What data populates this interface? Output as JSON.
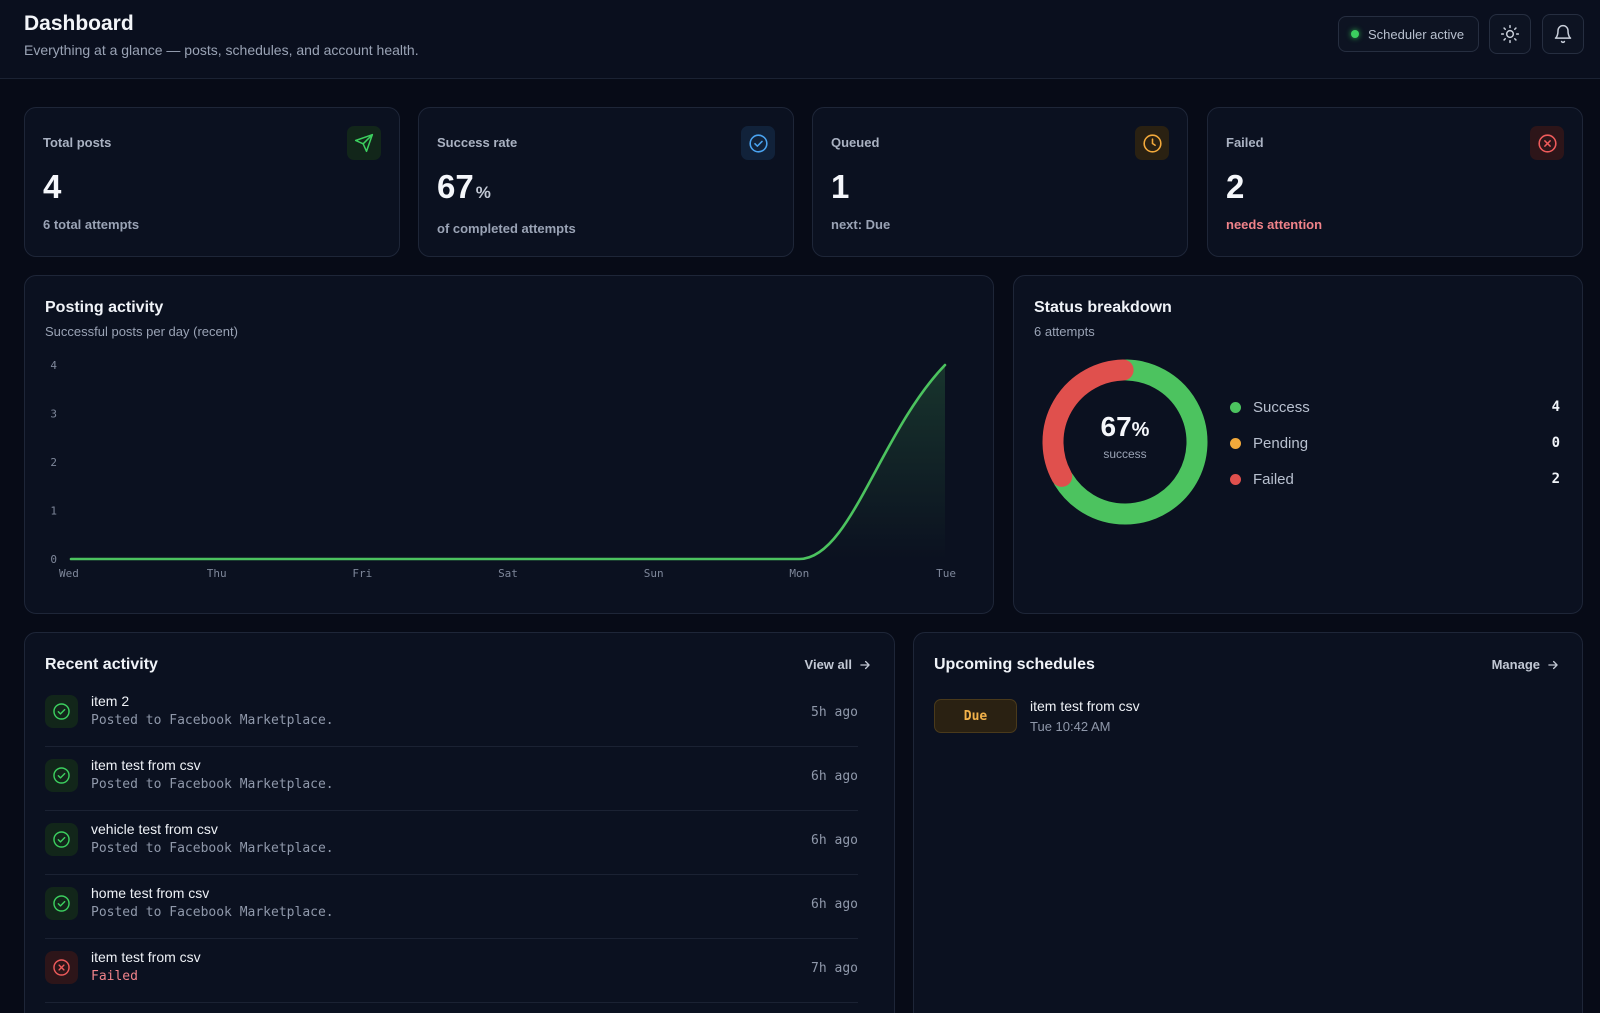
{
  "header": {
    "title": "Dashboard",
    "subtitle": "Everything at a glance — posts, schedules, and account health.",
    "scheduler_status": "Scheduler active",
    "status_color": "#3ccf5f",
    "theme_icon": "sun-icon",
    "notification_icon": "bell-icon"
  },
  "stats": {
    "total_posts": {
      "label": "Total posts",
      "value": "4",
      "sub": "6 total attempts",
      "icon": "send-icon",
      "color": "#3ccf5f"
    },
    "success_rate": {
      "label": "Success rate",
      "value": "67",
      "unit": "%",
      "sub": "of completed attempts",
      "icon": "check-circle-icon",
      "color": "#4aa3f0"
    },
    "queued": {
      "label": "Queued",
      "value": "1",
      "sub": "next: Due",
      "icon": "clock-icon",
      "color": "#f2a93b"
    },
    "failed": {
      "label": "Failed",
      "value": "2",
      "sub": "needs attention",
      "icon": "x-circle-icon",
      "color": "#ef5b5b"
    }
  },
  "posting_activity": {
    "title": "Posting activity",
    "subtitle": "Successful posts per day (recent)"
  },
  "chart_data": {
    "type": "area",
    "title": "Posting activity",
    "subtitle": "Successful posts per day (recent)",
    "categories": [
      "Wed",
      "Thu",
      "Fri",
      "Sat",
      "Sun",
      "Mon",
      "Tue"
    ],
    "values": [
      0,
      0,
      0,
      0,
      0,
      0,
      4
    ],
    "yticks": [
      0,
      1,
      2,
      3,
      4
    ],
    "ylim": [
      0,
      4
    ],
    "grid": false,
    "line_color": "#4cc35f"
  },
  "status_breakdown": {
    "title": "Status breakdown",
    "subtitle": "6 attempts",
    "center_value": "67",
    "center_unit": "%",
    "center_label": "success",
    "total": 6,
    "items": [
      {
        "name": "Success",
        "count": "4",
        "value": 4,
        "color": "#4cc35f"
      },
      {
        "name": "Pending",
        "count": "0",
        "value": 0,
        "color": "#f2a93b"
      },
      {
        "name": "Failed",
        "count": "2",
        "value": 2,
        "color": "#e0504d"
      }
    ]
  },
  "recent_activity": {
    "title": "Recent activity",
    "view_all": "View all",
    "items": [
      {
        "title": "item 2",
        "desc": "Posted to Facebook Marketplace.",
        "time": "5h ago",
        "status": "success",
        "icon": "check-circle-icon"
      },
      {
        "title": "item test from csv",
        "desc": "Posted to Facebook Marketplace.",
        "time": "6h ago",
        "status": "success",
        "icon": "check-circle-icon"
      },
      {
        "title": "vehicle test from csv",
        "desc": "Posted to Facebook Marketplace.",
        "time": "6h ago",
        "status": "success",
        "icon": "check-circle-icon"
      },
      {
        "title": "home test from csv",
        "desc": "Posted to Facebook Marketplace.",
        "time": "6h ago",
        "status": "success",
        "icon": "check-circle-icon"
      },
      {
        "title": "item test from csv",
        "desc": "Failed",
        "time": "7h ago",
        "status": "failed",
        "icon": "x-circle-icon"
      }
    ]
  },
  "upcoming_schedules": {
    "title": "Upcoming schedules",
    "manage": "Manage",
    "items": [
      {
        "badge": "Due",
        "title": "item test from csv",
        "time": "Tue 10:42 AM"
      }
    ]
  }
}
